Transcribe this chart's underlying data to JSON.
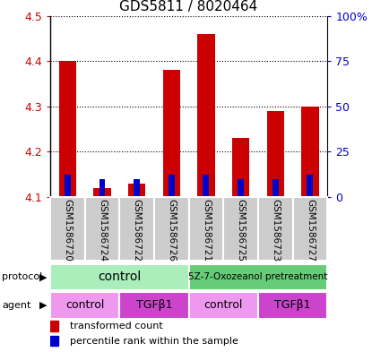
{
  "title": "GDS5811 / 8020464",
  "samples": [
    "GSM1586720",
    "GSM1586724",
    "GSM1586722",
    "GSM1586726",
    "GSM1586721",
    "GSM1586725",
    "GSM1586723",
    "GSM1586727"
  ],
  "red_values": [
    4.4,
    4.12,
    4.13,
    4.38,
    4.46,
    4.23,
    4.29,
    4.3
  ],
  "blue_values": [
    4.15,
    4.14,
    4.14,
    4.15,
    4.15,
    4.14,
    4.14,
    4.15
  ],
  "red_base": 4.1,
  "ylim": [
    4.1,
    4.5
  ],
  "yticks_left": [
    4.1,
    4.2,
    4.3,
    4.4,
    4.5
  ],
  "yticks_right": [
    0,
    25,
    50,
    75,
    100
  ],
  "ytick_labels_right": [
    "0",
    "25",
    "50",
    "75",
    "100%"
  ],
  "red_color": "#cc0000",
  "blue_color": "#0000cc",
  "protocol_labels": [
    "control",
    "5Z-7-Oxozeanol pretreatment"
  ],
  "protocol_colors": [
    "#aaeebb",
    "#66cc77"
  ],
  "agent_labels": [
    "control",
    "TGFβ1",
    "control",
    "TGFβ1"
  ],
  "agent_colors_list": [
    "#ee99ee",
    "#cc44cc",
    "#ee99ee",
    "#cc44cc"
  ],
  "bg_color": "#cccccc",
  "legend_red": "transformed count",
  "legend_blue": "percentile rank within the sample",
  "bar_width": 0.5,
  "blue_bar_width": 0.18
}
